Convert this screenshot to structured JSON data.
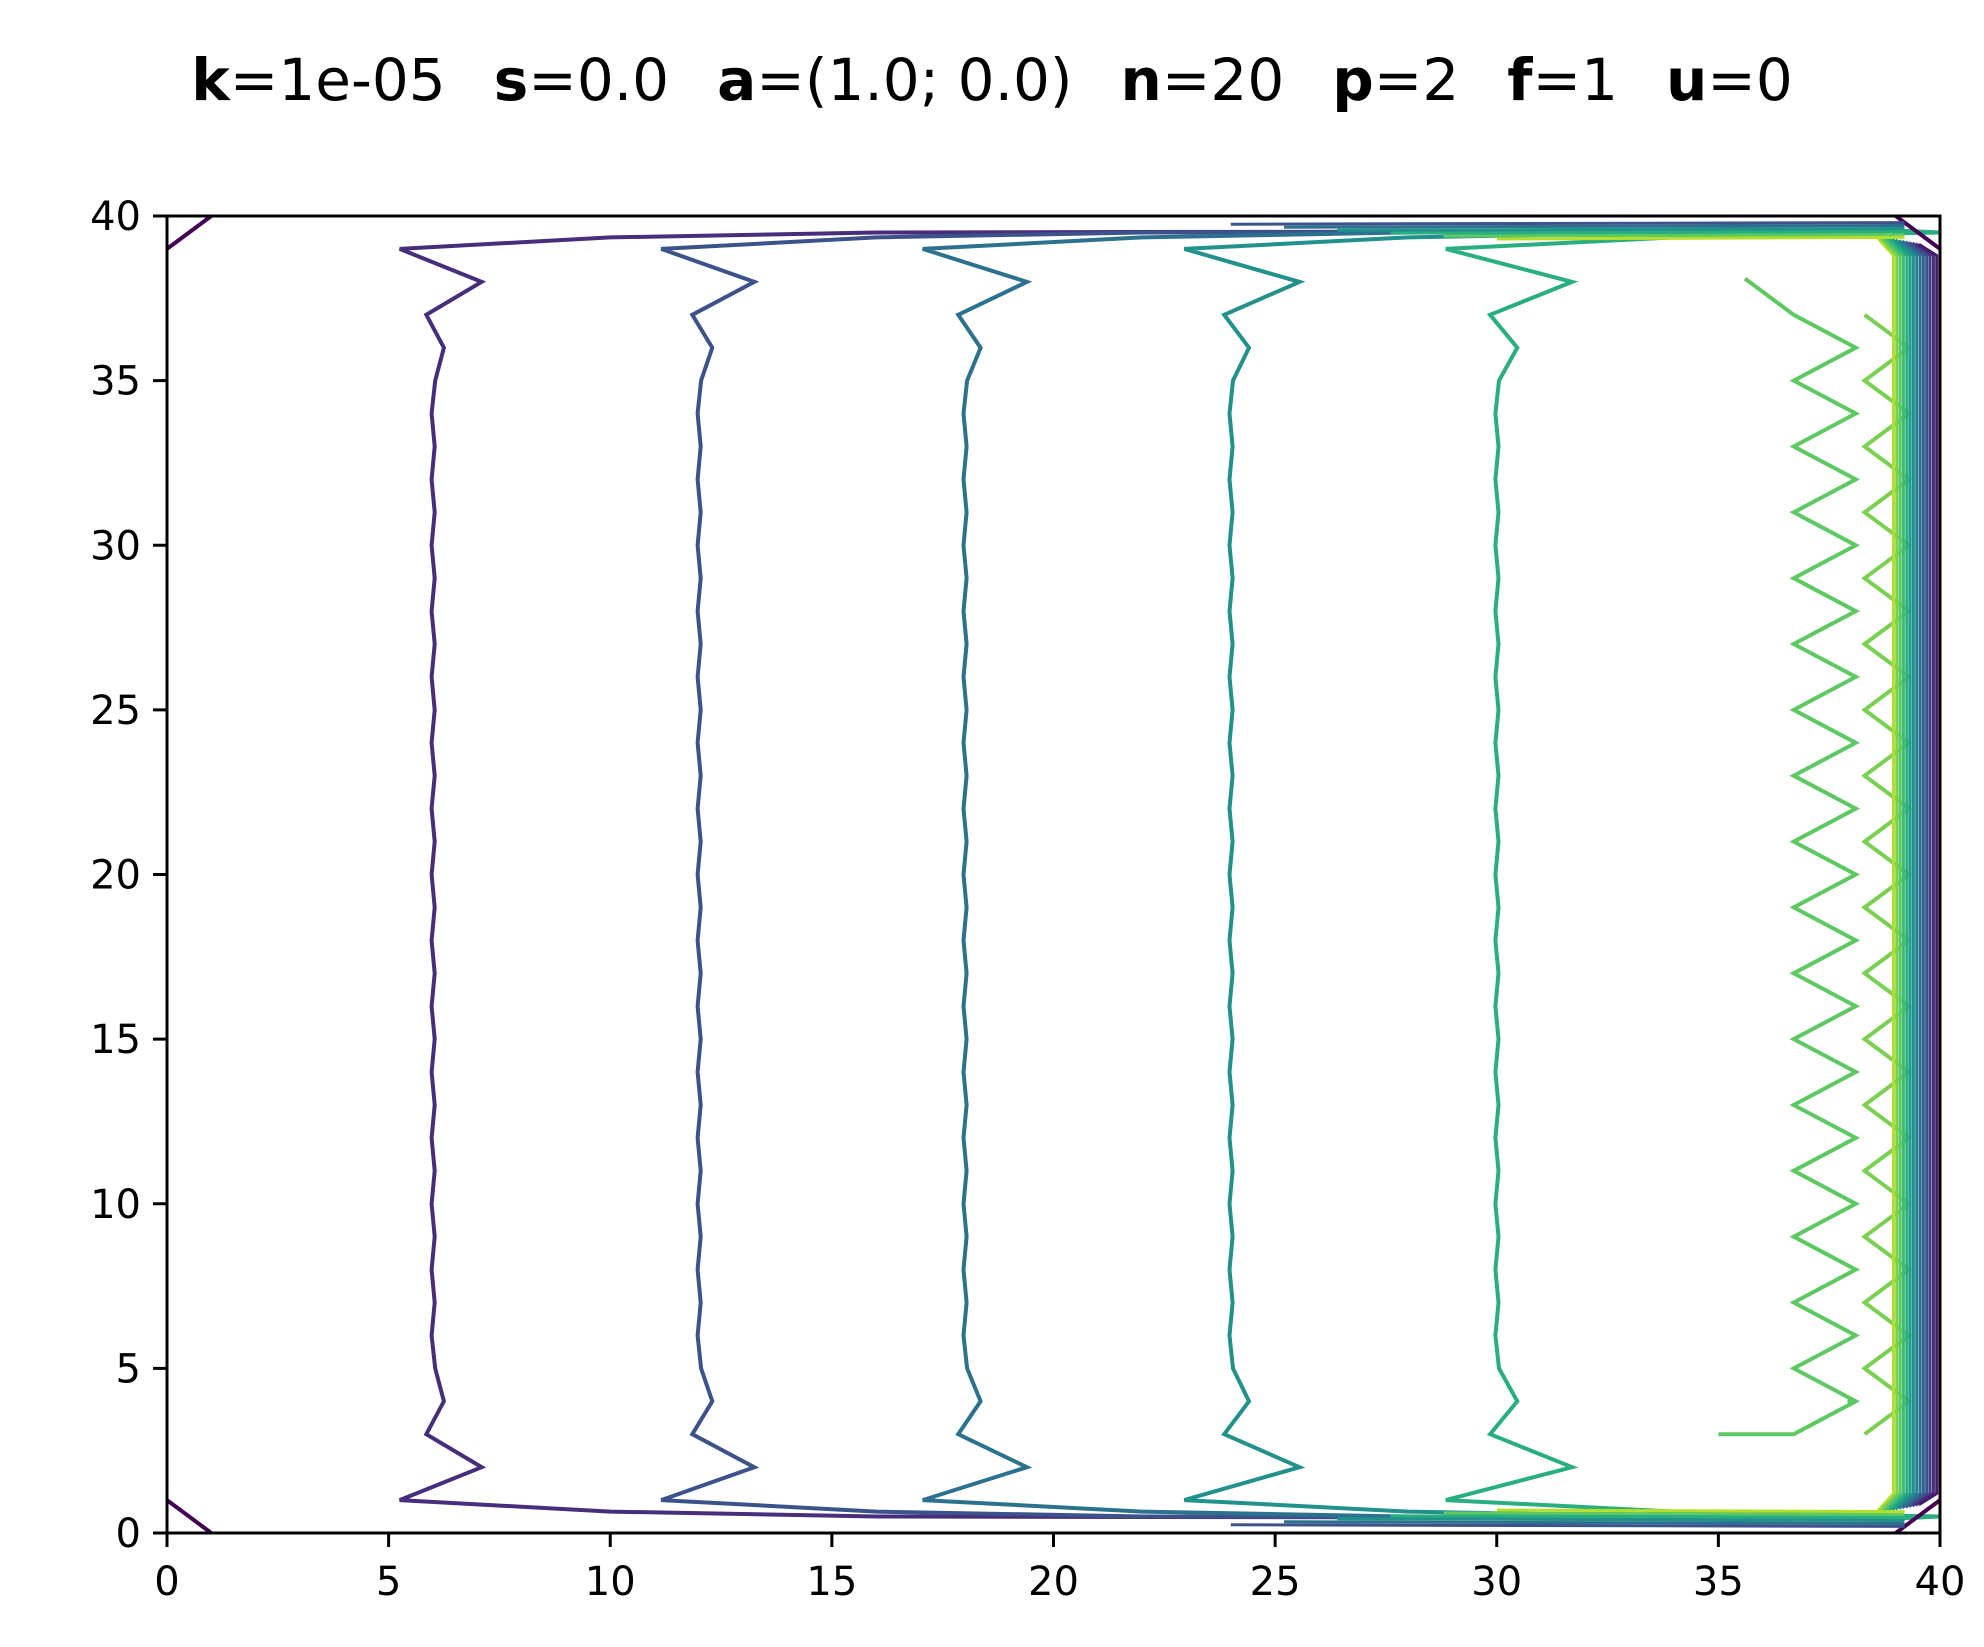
{
  "chart_data": {
    "type": "contour",
    "title_parts": [
      {
        "key": "k",
        "value": "=1e-05"
      },
      {
        "key": "s",
        "value": "=0.0"
      },
      {
        "key": "a",
        "value": "=(1.0; 0.0)"
      },
      {
        "key": "n",
        "value": "=20"
      },
      {
        "key": "p",
        "value": "=2"
      },
      {
        "key": "f",
        "value": "=1"
      },
      {
        "key": "u",
        "value": "=0"
      }
    ],
    "xlabel": "",
    "ylabel": "",
    "xlim": [
      0,
      40
    ],
    "ylim": [
      0,
      40
    ],
    "x_ticks": [
      0,
      5,
      10,
      15,
      20,
      25,
      30,
      35,
      40
    ],
    "y_ticks": [
      0,
      5,
      10,
      15,
      20,
      25,
      30,
      35,
      40
    ],
    "x_tick_labels": [
      "0",
      "5",
      "10",
      "15",
      "20",
      "25",
      "30",
      "35",
      "40"
    ],
    "y_tick_labels": [
      "0",
      "5",
      "10",
      "15",
      "20",
      "25",
      "30",
      "35",
      "40"
    ],
    "grid": false,
    "colormap": "viridis",
    "colors": [
      "#440154",
      "#443983",
      "#31688e",
      "#21918c",
      "#35b779",
      "#90d743",
      "#fde725"
    ],
    "contour_levels": [
      {
        "x": 6.0,
        "color": "#472d7b"
      },
      {
        "x": 12.0,
        "color": "#3b528b"
      },
      {
        "x": 18.0,
        "color": "#2c728e"
      },
      {
        "x": 24.0,
        "color": "#21918c"
      },
      {
        "x": 30.0,
        "color": "#28ae80"
      }
    ],
    "near_wall_ridge_x": 37.0,
    "boundary_layer_x": 39.0
  }
}
